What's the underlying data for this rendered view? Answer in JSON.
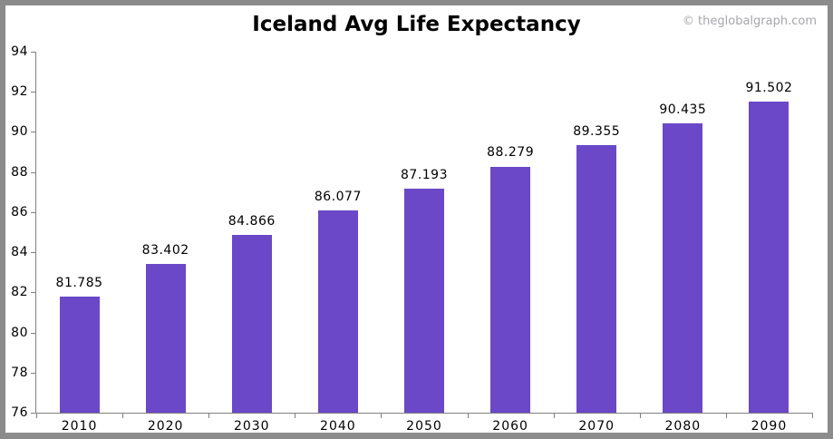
{
  "page": {
    "watermark": "© theglobalgraph.com"
  },
  "chart_data": {
    "type": "bar",
    "title": "Iceland Avg Life Expectancy",
    "categories": [
      "2010",
      "2020",
      "2030",
      "2040",
      "2050",
      "2060",
      "2070",
      "2080",
      "2090"
    ],
    "values": [
      81.785,
      83.402,
      84.866,
      86.077,
      87.193,
      88.279,
      89.355,
      90.435,
      91.502
    ],
    "value_labels": [
      "81.785",
      "83.402",
      "84.866",
      "86.077",
      "87.193",
      "88.279",
      "89.355",
      "90.435",
      "91.502"
    ],
    "xlabel": "",
    "ylabel": "",
    "ylim": [
      76,
      94
    ],
    "yticks": [
      76,
      78,
      80,
      82,
      84,
      86,
      88,
      90,
      92,
      94
    ],
    "grid": false,
    "legend": "none",
    "colors": {
      "bar": "#6A48C8",
      "axis": "#808080",
      "text": "#000000",
      "watermark": "#A6A6AB",
      "frame": "#8B8B8B",
      "background": "#FFFFFF"
    }
  }
}
